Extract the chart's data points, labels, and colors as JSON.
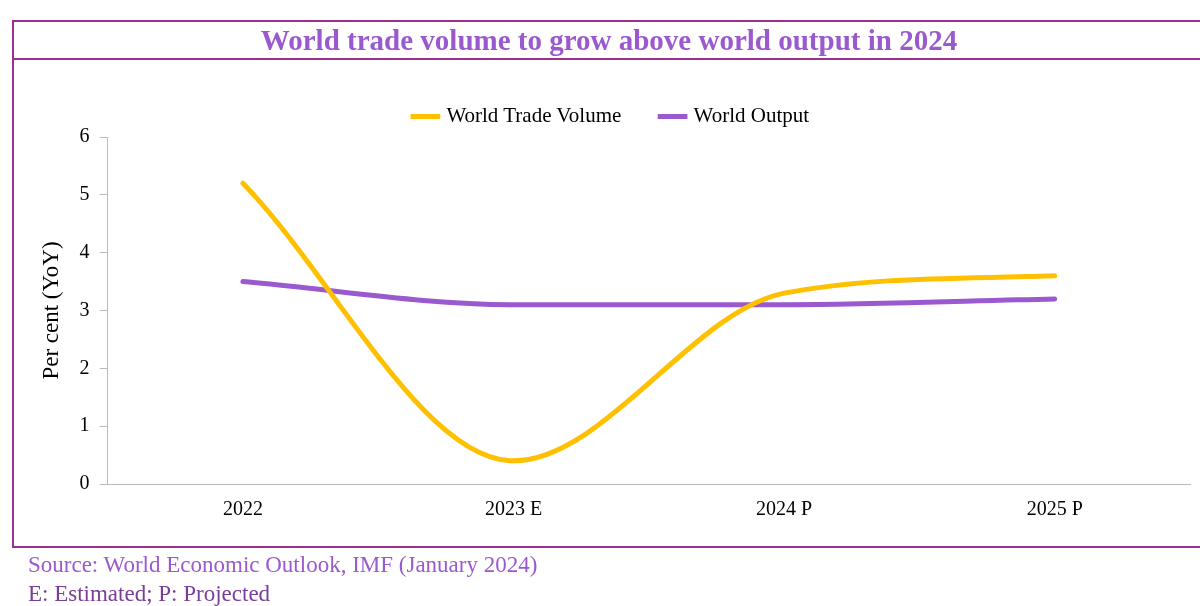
{
  "chart_data": {
    "type": "line",
    "title": "World trade volume to grow above world output in 2024",
    "ylabel": "Per cent (YoY)",
    "categories": [
      "2022",
      "2023 E",
      "2024 P",
      "2025 P"
    ],
    "series": [
      {
        "name": "World Trade Volume",
        "color": "#ffc000",
        "values": [
          5.2,
          0.4,
          3.3,
          3.6
        ]
      },
      {
        "name": "World Output",
        "color": "#9b59d0",
        "values": [
          3.5,
          3.1,
          3.1,
          3.2
        ]
      }
    ],
    "ylim": [
      0,
      6
    ],
    "yticks": [
      0,
      1,
      2,
      3,
      4,
      5,
      6
    ],
    "grid": false,
    "legend": "top",
    "annotations": [
      "Source: World Economic Outlook, IMF (January 2024)",
      "E: Estimated; P: Projected"
    ]
  }
}
